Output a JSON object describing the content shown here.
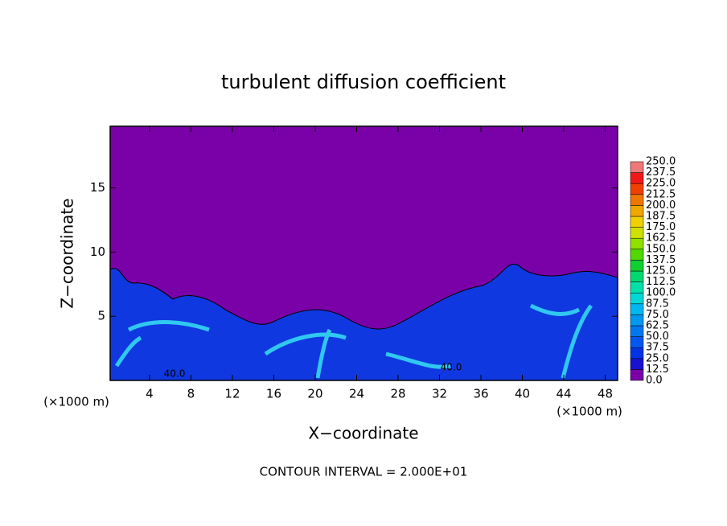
{
  "chart_data": {
    "type": "contour",
    "title": "turbulent diffusion coefficient",
    "xlabel": "X−coordinate",
    "ylabel": "Z−coordinate",
    "unit_label": "(×1000 m)",
    "footer": "CONTOUR INTERVAL = 2.000E+01",
    "xlim": [
      0.2,
      49.2
    ],
    "ylim": [
      0,
      19.8
    ],
    "xticks": [
      4,
      8,
      12,
      16,
      20,
      24,
      28,
      32,
      36,
      40,
      44,
      48
    ],
    "yticks": [
      5,
      10,
      15
    ],
    "colorbar_levels": [
      {
        "value": 0,
        "label": "0.0"
      },
      {
        "value": 12.5,
        "label": "12.5"
      },
      {
        "value": 25,
        "label": "25.0"
      },
      {
        "value": 37.5,
        "label": "37.5"
      },
      {
        "value": 50,
        "label": "50.0"
      },
      {
        "value": 62.5,
        "label": "62.5"
      },
      {
        "value": 75,
        "label": "75.0"
      },
      {
        "value": 87.5,
        "label": "87.5"
      },
      {
        "value": 100,
        "label": "100.0"
      },
      {
        "value": 112.5,
        "label": "112.5"
      },
      {
        "value": 125,
        "label": "125.0"
      },
      {
        "value": 137.5,
        "label": "137.5"
      },
      {
        "value": 150,
        "label": "150.0"
      },
      {
        "value": 162.5,
        "label": "162.5"
      },
      {
        "value": 175,
        "label": "175.0"
      },
      {
        "value": 187.5,
        "label": "187.5"
      },
      {
        "value": 200,
        "label": "200.0"
      },
      {
        "value": 212.5,
        "label": "212.5"
      },
      {
        "value": 225,
        "label": "225.0"
      },
      {
        "value": 237.5,
        "label": "237.5"
      },
      {
        "value": 250,
        "label": "250.0"
      }
    ],
    "colorbar_colors": [
      "#7a00a8",
      "#1a10d0",
      "#0034e6",
      "#0058f0",
      "#0078f0",
      "#0098f0",
      "#00b8f0",
      "#00d8d8",
      "#00e0a8",
      "#00d870",
      "#10d030",
      "#50d800",
      "#90e000",
      "#d0e000",
      "#f0d000",
      "#f0a800",
      "#f07800",
      "#f04000",
      "#f01818",
      "#f07878"
    ],
    "contour_labels": [
      {
        "value": 40,
        "label": "40.0"
      },
      {
        "value": 40,
        "label": "40.0"
      }
    ]
  }
}
